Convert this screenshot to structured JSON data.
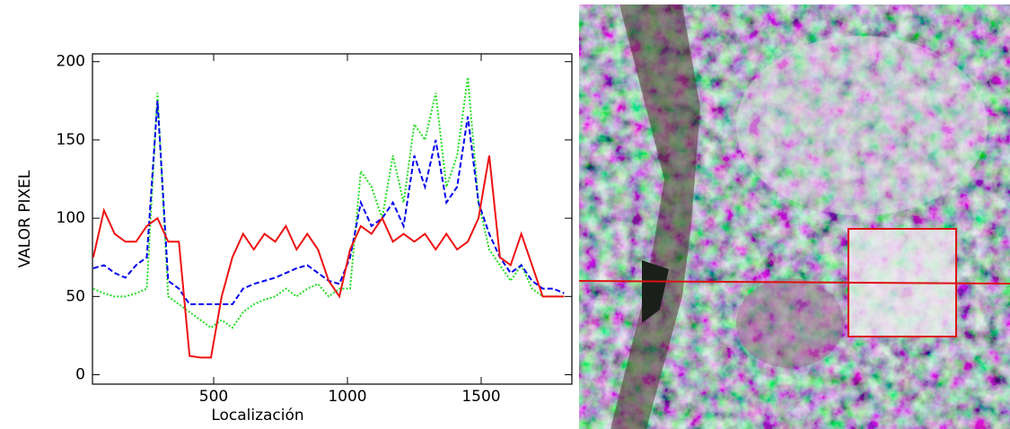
{
  "chart_data": {
    "type": "line",
    "x_label": "Localización",
    "y_label": "VALOR PIXEL",
    "x": [
      50,
      90,
      130,
      170,
      210,
      250,
      290,
      330,
      370,
      410,
      450,
      490,
      530,
      570,
      610,
      650,
      690,
      730,
      770,
      810,
      850,
      890,
      930,
      970,
      1010,
      1050,
      1090,
      1130,
      1170,
      1210,
      1250,
      1290,
      1330,
      1370,
      1410,
      1450,
      1490,
      1530,
      1570,
      1610,
      1650,
      1690,
      1730,
      1770,
      1810
    ],
    "series": [
      {
        "color": "#22dd22",
        "style": "dotted",
        "values": [
          55,
          52,
          50,
          50,
          52,
          55,
          180,
          50,
          45,
          40,
          35,
          30,
          35,
          30,
          40,
          45,
          48,
          50,
          55,
          50,
          55,
          58,
          50,
          55,
          55,
          130,
          120,
          100,
          140,
          110,
          160,
          150,
          180,
          120,
          140,
          190,
          110,
          80,
          70,
          60,
          70,
          55,
          50,
          50,
          50
        ]
      },
      {
        "color": "#0000ee",
        "style": "dashed",
        "values": [
          68,
          70,
          65,
          62,
          70,
          75,
          175,
          60,
          55,
          45,
          45,
          45,
          45,
          45,
          55,
          58,
          60,
          62,
          65,
          68,
          70,
          65,
          60,
          58,
          75,
          110,
          95,
          100,
          110,
          95,
          140,
          120,
          150,
          110,
          120,
          165,
          110,
          90,
          75,
          65,
          70,
          60,
          55,
          55,
          52
        ]
      },
      {
        "color": "#ee1111",
        "style": "solid",
        "values": [
          75,
          105,
          90,
          85,
          85,
          95,
          100,
          85,
          85,
          12,
          11,
          11,
          50,
          75,
          90,
          80,
          90,
          85,
          95,
          80,
          90,
          80,
          60,
          50,
          80,
          95,
          90,
          100,
          85,
          90,
          85,
          90,
          80,
          90,
          80,
          85,
          100,
          140,
          75,
          70,
          90,
          70,
          50,
          50,
          50
        ]
      }
    ],
    "xlim": [
      47,
      1839
    ],
    "ylim": [
      -6,
      205
    ],
    "xticks": [
      500,
      1000,
      1500
    ],
    "yticks": [
      0,
      50,
      100,
      150,
      200
    ]
  }
}
